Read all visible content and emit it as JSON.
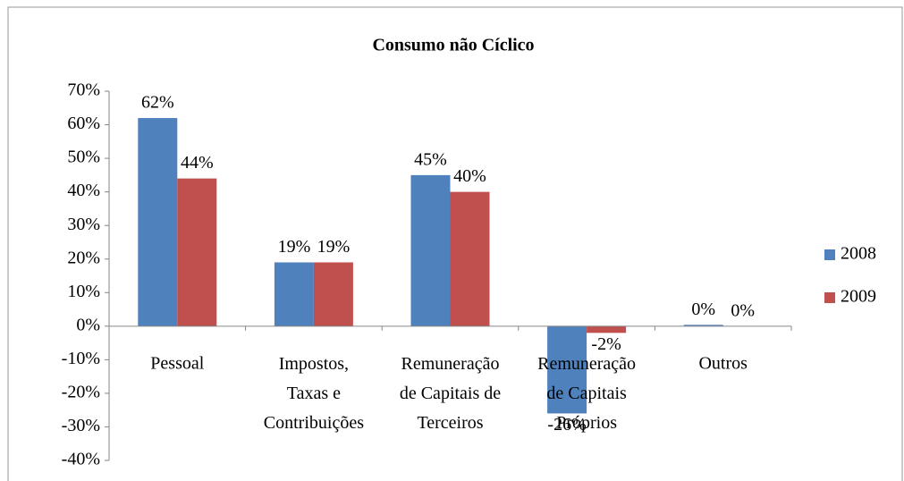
{
  "chart_data": {
    "type": "bar",
    "title": "Consumo não Cíclico",
    "categories": [
      "Pessoal",
      "Impostos,\nTaxas e\nContribuições",
      "Remuneração\nde Capitais de\nTerceiros",
      "Remuneração\nde Capitais\nPróprios",
      "Outros"
    ],
    "series": [
      {
        "name": "2008",
        "color": "#4f81bd",
        "values": [
          62,
          19,
          45,
          -26,
          0.4
        ],
        "value_labels": [
          "62%",
          "19%",
          "45%",
          "-26%",
          "0%"
        ]
      },
      {
        "name": "2009",
        "color": "#c0504d",
        "values": [
          44,
          19,
          40,
          -2,
          0
        ],
        "value_labels": [
          "44%",
          "19%",
          "40%",
          "-2%",
          "0%"
        ]
      }
    ],
    "ylim": [
      -40,
      70
    ],
    "yticks": [
      {
        "value": -40,
        "label": "-40%"
      },
      {
        "value": -30,
        "label": "-30%"
      },
      {
        "value": -20,
        "label": "-20%"
      },
      {
        "value": -10,
        "label": "-10%"
      },
      {
        "value": 0,
        "label": "0%"
      },
      {
        "value": 10,
        "label": "10%"
      },
      {
        "value": 20,
        "label": "20%"
      },
      {
        "value": 30,
        "label": "30%"
      },
      {
        "value": 40,
        "label": "40%"
      },
      {
        "value": 50,
        "label": "50%"
      },
      {
        "value": 60,
        "label": "60%"
      },
      {
        "value": 70,
        "label": "70%"
      }
    ],
    "legend": "right"
  }
}
